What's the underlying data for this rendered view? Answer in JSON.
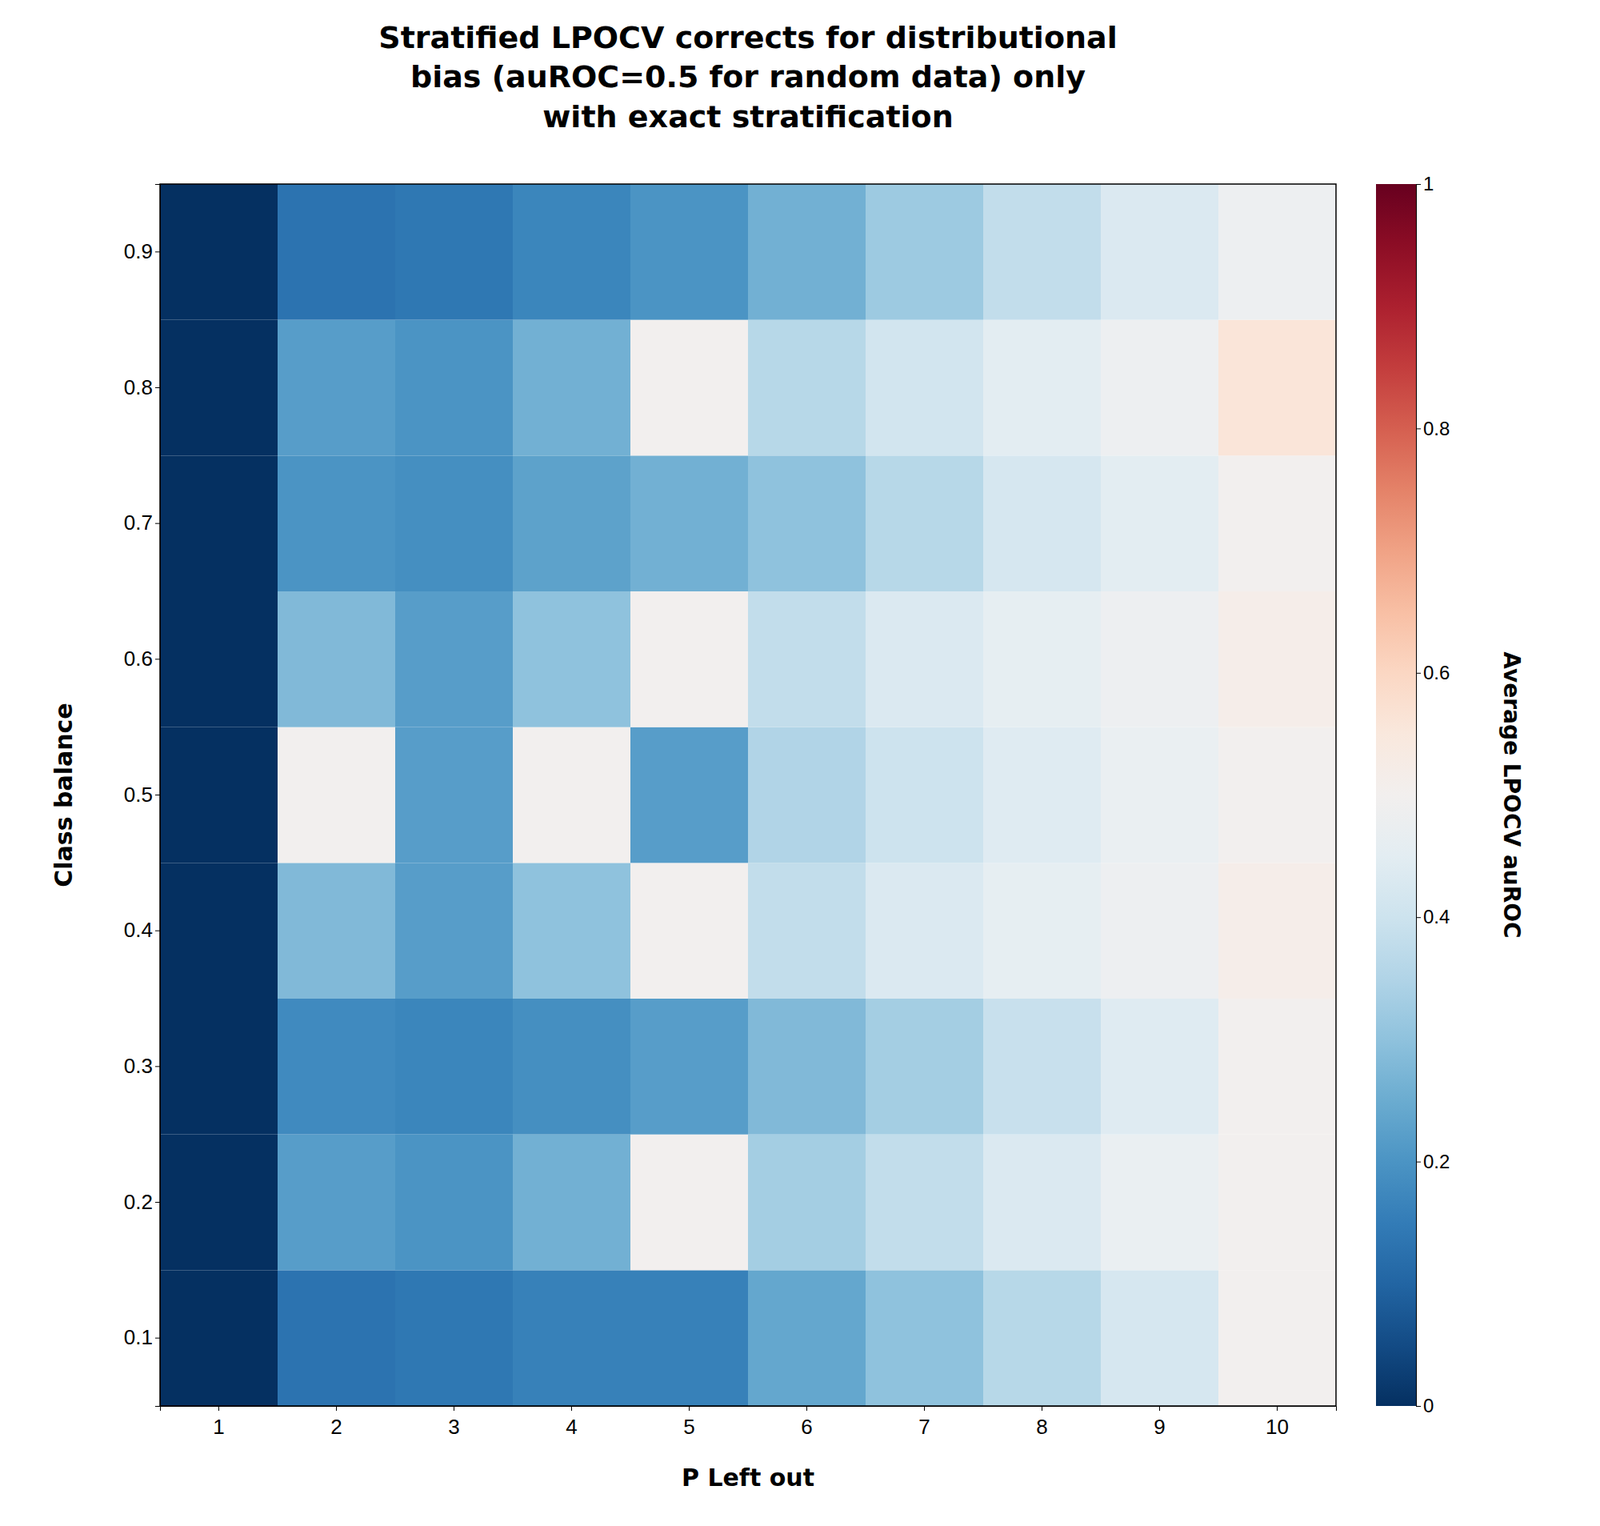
{
  "chart_data": {
    "type": "heatmap",
    "title": "Stratified LPOCV corrects for distributional\nbias (auROC=0.5 for random data) only\nwith exact stratification",
    "x_label": "P Left out",
    "y_label": "Class balance",
    "colorbar_label": "Average LPOCV auROC",
    "x": [
      1,
      2,
      3,
      4,
      5,
      6,
      7,
      8,
      9,
      10
    ],
    "y": [
      0.1,
      0.2,
      0.3,
      0.4,
      0.5,
      0.6,
      0.7,
      0.8,
      0.9
    ],
    "values": [
      [
        0.0,
        0.13,
        0.14,
        0.16,
        0.16,
        0.24,
        0.3,
        0.36,
        0.42,
        0.5
      ],
      [
        0.0,
        0.22,
        0.2,
        0.26,
        0.5,
        0.33,
        0.38,
        0.43,
        0.47,
        0.5
      ],
      [
        0.0,
        0.18,
        0.17,
        0.19,
        0.22,
        0.28,
        0.33,
        0.39,
        0.44,
        0.5
      ],
      [
        0.0,
        0.28,
        0.22,
        0.3,
        0.5,
        0.38,
        0.43,
        0.46,
        0.48,
        0.52
      ],
      [
        0.0,
        0.5,
        0.22,
        0.5,
        0.22,
        0.35,
        0.4,
        0.44,
        0.47,
        0.5
      ],
      [
        0.0,
        0.28,
        0.22,
        0.3,
        0.5,
        0.38,
        0.43,
        0.46,
        0.48,
        0.52
      ],
      [
        0.0,
        0.2,
        0.19,
        0.23,
        0.26,
        0.3,
        0.36,
        0.42,
        0.45,
        0.5
      ],
      [
        0.0,
        0.22,
        0.2,
        0.26,
        0.5,
        0.36,
        0.41,
        0.45,
        0.48,
        0.56
      ],
      [
        0.0,
        0.13,
        0.14,
        0.17,
        0.2,
        0.26,
        0.32,
        0.38,
        0.43,
        0.48
      ]
    ],
    "color_range": [
      0.0,
      1.0
    ],
    "color_ticks": [
      0,
      0.2,
      0.4,
      0.6,
      0.8,
      1
    ],
    "grid": false
  }
}
